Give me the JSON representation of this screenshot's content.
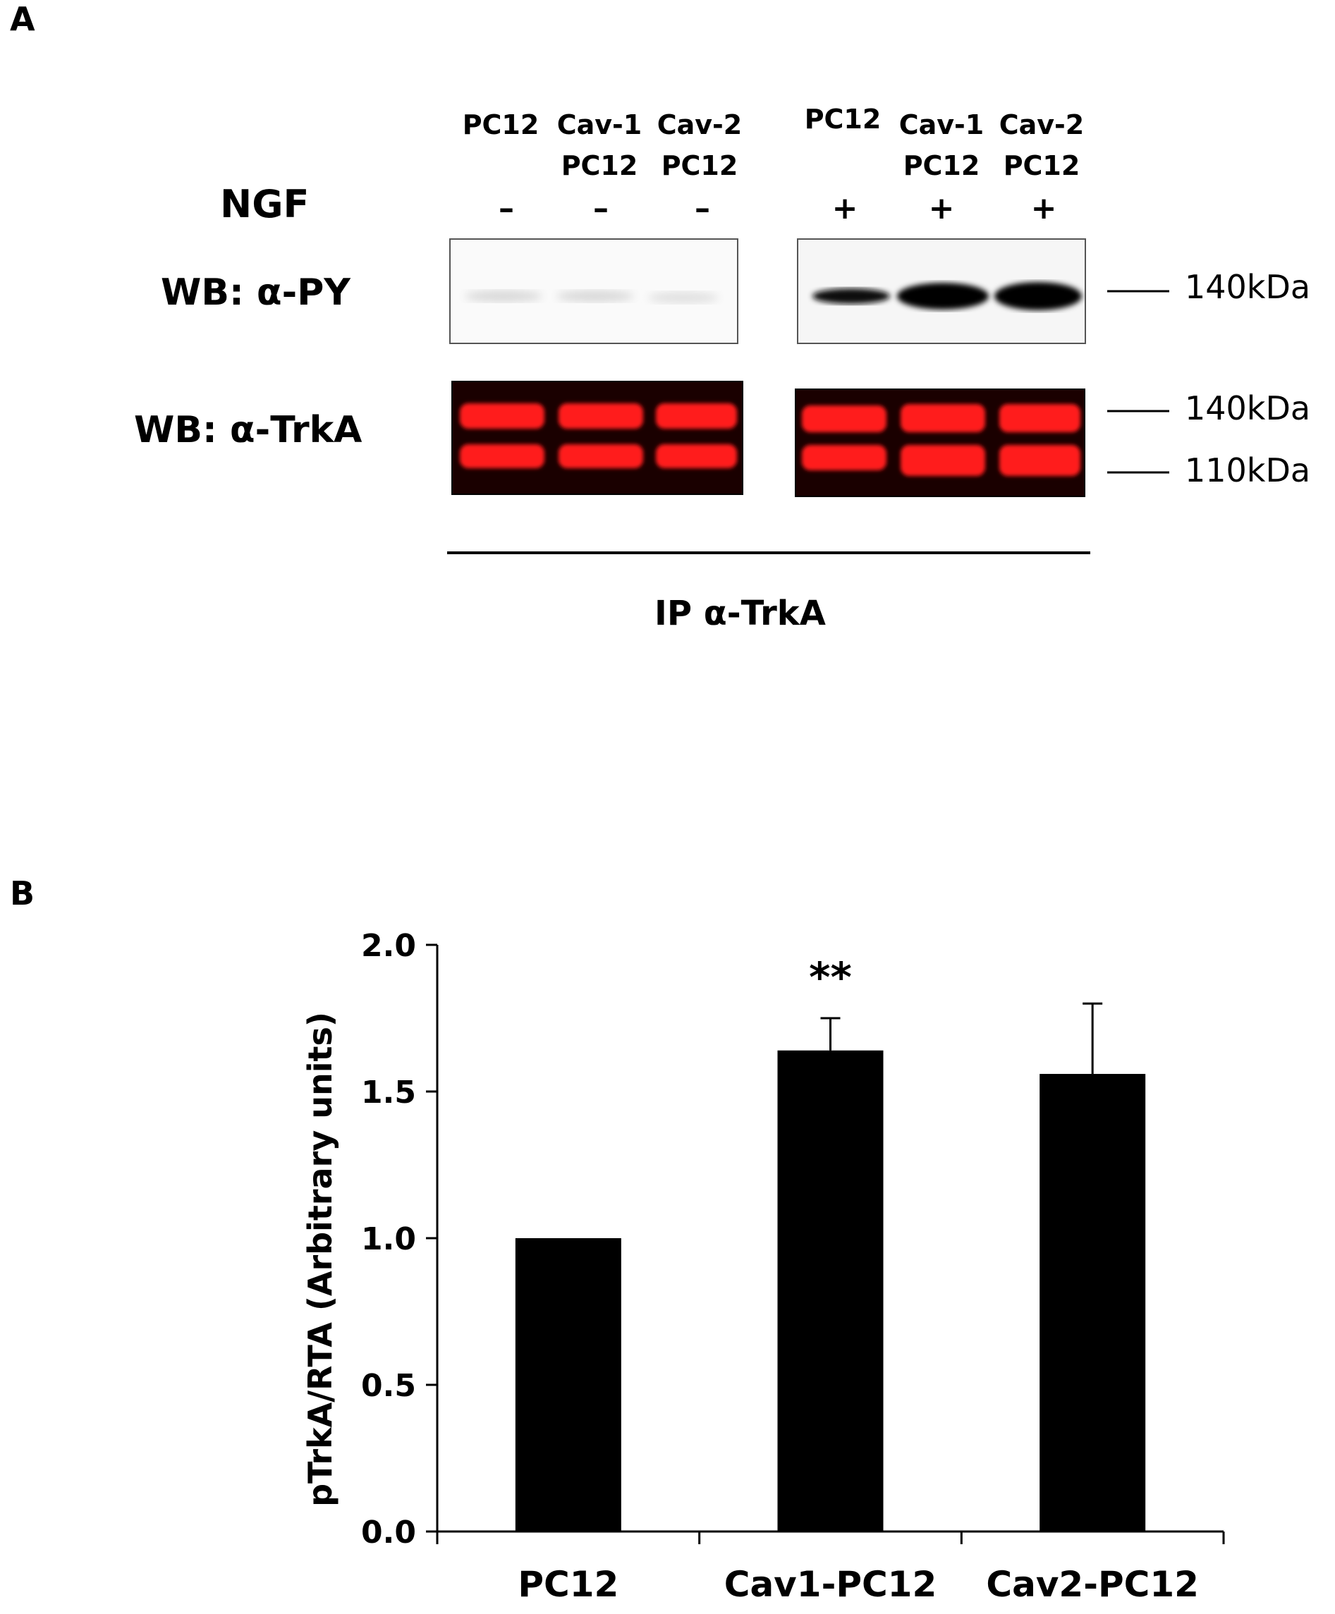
{
  "panel_a": {
    "letter": "A",
    "ngf_label": "NGF",
    "lanes": [
      {
        "line1": "",
        "line2": "PC12",
        "ngf": "–"
      },
      {
        "line1": "Cav-1",
        "line2": "PC12",
        "ngf": "–"
      },
      {
        "line1": "Cav-2",
        "line2": "PC12",
        "ngf": "–"
      },
      {
        "line1": "",
        "line2": "PC12",
        "ngf": "+"
      },
      {
        "line1": "Cav-1",
        "line2": "PC12",
        "ngf": "+"
      },
      {
        "line1": "Cav-2",
        "line2": "PC12",
        "ngf": "+"
      }
    ],
    "blot_py_label": "WB: α-PY",
    "blot_trka_label": "WB: α-TrkA",
    "marker_140_top": "140kDa",
    "marker_140": "140kDa",
    "marker_110": "110kDa",
    "ip_label": "IP α-TrkA",
    "colors": {
      "trka_band": "#ff1a1a",
      "trka_bg": "#1a0000",
      "py_band": "#000000"
    }
  },
  "panel_b": {
    "letter": "B"
  },
  "chart_data": {
    "type": "bar",
    "categories": [
      "PC12",
      "Cav1-PC12",
      "Cav2-PC12"
    ],
    "values": [
      1.0,
      1.64,
      1.56
    ],
    "errors": [
      0.0,
      0.11,
      0.24
    ],
    "annotations": [
      {
        "category": "Cav1-PC12",
        "text": "**"
      }
    ],
    "ylabel": "pTrkA/RTA (Arbitrary units)",
    "xlabel": "",
    "ylim": [
      0,
      2.0
    ],
    "yticks": [
      0.0,
      0.5,
      1.0,
      1.5,
      2.0
    ],
    "ytick_labels": [
      "0.0",
      "0.5",
      "1.0",
      "1.5",
      "2.0"
    ],
    "bar_color": "#000000",
    "grid": false,
    "legend": "none"
  }
}
